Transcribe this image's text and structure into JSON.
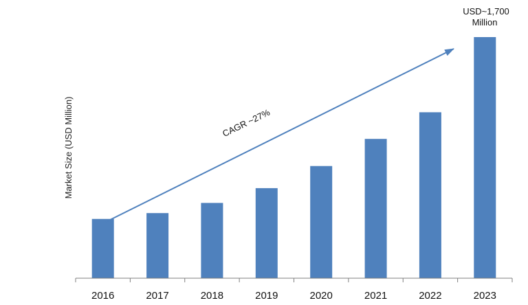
{
  "chart_data": {
    "type": "bar",
    "categories": [
      "2016",
      "2017",
      "2018",
      "2019",
      "2020",
      "2021",
      "2022",
      "2023"
    ],
    "values": [
      418,
      459,
      531,
      635,
      791,
      982,
      1170,
      1700
    ],
    "title": "",
    "xlabel": "",
    "ylabel": "Market Size (USD Million)",
    "ylim": [
      0,
      1700
    ],
    "grid": false,
    "legend": "none",
    "bar_color": "#4f81bd",
    "arrow_color": "#4f81bd",
    "annotations": {
      "cagr": "CAGR ~27%",
      "end_value_line1": "USD~1,700",
      "end_value_line2": "Million"
    }
  }
}
